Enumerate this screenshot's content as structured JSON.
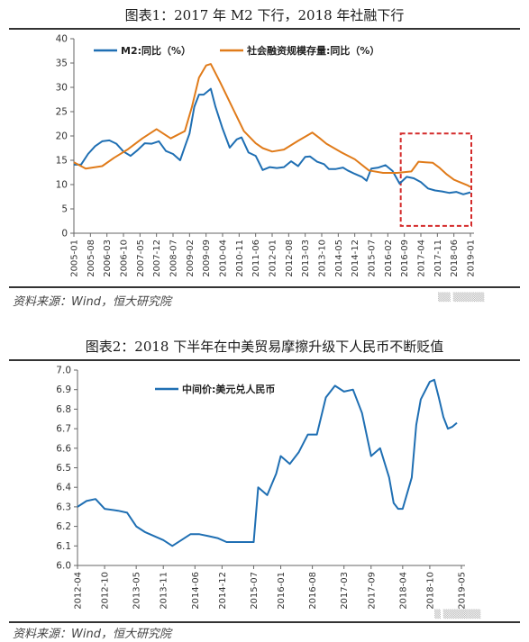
{
  "chart_data": [
    {
      "type": "line",
      "title": "图表1：2017 年 M2 下行，2018 年社融下行",
      "source": "资料来源：Wind，恒大研究院",
      "xlabel": "",
      "ylabel": "",
      "ylim": [
        0,
        40
      ],
      "yticks": [
        0,
        5,
        10,
        15,
        20,
        25,
        30,
        35,
        40
      ],
      "xticks": [
        "2005-01",
        "2005-08",
        "2006-03",
        "2006-10",
        "2007-05",
        "2007-12",
        "2008-07",
        "2009-02",
        "2009-09",
        "2010-04",
        "2010-11",
        "2011-06",
        "2012-01",
        "2012-08",
        "2013-03",
        "2013-10",
        "2014-05",
        "2014-12",
        "2015-07",
        "2016-02",
        "2016-09",
        "2017-04",
        "2017-11",
        "2018-06",
        "2019-01"
      ],
      "legend": "top",
      "highlight_box": {
        "x_from": "2016-09",
        "x_to": "2019-01",
        "y_from": 1.5,
        "y_to": 20.5,
        "color": "#d42a2a"
      },
      "series": [
        {
          "name": "M2:同比（%）",
          "color": "#1f6fb3",
          "points": [
            [
              "2005-01",
              14.1
            ],
            [
              "2005-04",
              14.1
            ],
            [
              "2005-07",
              16.3
            ],
            [
              "2005-10",
              17.9
            ],
            [
              "2006-01",
              18.9
            ],
            [
              "2006-04",
              19.1
            ],
            [
              "2006-07",
              18.4
            ],
            [
              "2006-10",
              16.8
            ],
            [
              "2007-01",
              15.9
            ],
            [
              "2007-04",
              17.1
            ],
            [
              "2007-07",
              18.5
            ],
            [
              "2007-10",
              18.4
            ],
            [
              "2008-01",
              18.9
            ],
            [
              "2008-04",
              16.9
            ],
            [
              "2008-07",
              16.3
            ],
            [
              "2008-10",
              15.0
            ],
            [
              "2008-12",
              17.8
            ],
            [
              "2009-02",
              20.5
            ],
            [
              "2009-04",
              26.0
            ],
            [
              "2009-06",
              28.5
            ],
            [
              "2009-08",
              28.5
            ],
            [
              "2009-11",
              29.7
            ],
            [
              "2010-01",
              26.0
            ],
            [
              "2010-04",
              21.5
            ],
            [
              "2010-07",
              17.6
            ],
            [
              "2010-10",
              19.3
            ],
            [
              "2010-12",
              19.7
            ],
            [
              "2011-03",
              16.6
            ],
            [
              "2011-06",
              15.9
            ],
            [
              "2011-09",
              13.0
            ],
            [
              "2011-12",
              13.6
            ],
            [
              "2012-03",
              13.4
            ],
            [
              "2012-06",
              13.6
            ],
            [
              "2012-09",
              14.8
            ],
            [
              "2012-12",
              13.8
            ],
            [
              "2013-03",
              15.7
            ],
            [
              "2013-05",
              15.8
            ],
            [
              "2013-08",
              14.7
            ],
            [
              "2013-11",
              14.2
            ],
            [
              "2014-01",
              13.2
            ],
            [
              "2014-04",
              13.2
            ],
            [
              "2014-07",
              13.5
            ],
            [
              "2014-09",
              12.9
            ],
            [
              "2014-12",
              12.2
            ],
            [
              "2015-03",
              11.6
            ],
            [
              "2015-05",
              10.8
            ],
            [
              "2015-07",
              13.3
            ],
            [
              "2015-10",
              13.5
            ],
            [
              "2016-01",
              14.0
            ],
            [
              "2016-04",
              12.8
            ],
            [
              "2016-07",
              10.2
            ],
            [
              "2016-10",
              11.6
            ],
            [
              "2017-01",
              11.3
            ],
            [
              "2017-04",
              10.5
            ],
            [
              "2017-07",
              9.2
            ],
            [
              "2017-10",
              8.8
            ],
            [
              "2018-01",
              8.6
            ],
            [
              "2018-04",
              8.3
            ],
            [
              "2018-07",
              8.5
            ],
            [
              "2018-10",
              8.0
            ],
            [
              "2019-01",
              8.4
            ]
          ]
        },
        {
          "name": "社会融资规模存量:同比（%）",
          "color": "#e07b1a",
          "points": [
            [
              "2005-01",
              14.6
            ],
            [
              "2005-06",
              13.3
            ],
            [
              "2006-01",
              13.8
            ],
            [
              "2006-06",
              15.5
            ],
            [
              "2006-12",
              17.3
            ],
            [
              "2007-06",
              19.5
            ],
            [
              "2007-12",
              21.4
            ],
            [
              "2008-06",
              19.5
            ],
            [
              "2008-12",
              21.0
            ],
            [
              "2009-03",
              26.0
            ],
            [
              "2009-06",
              32.0
            ],
            [
              "2009-09",
              34.5
            ],
            [
              "2009-11",
              34.8
            ],
            [
              "2010-03",
              31.0
            ],
            [
              "2010-09",
              25.0
            ],
            [
              "2011-01",
              21.0
            ],
            [
              "2011-06",
              18.5
            ],
            [
              "2011-09",
              17.5
            ],
            [
              "2012-01",
              16.8
            ],
            [
              "2012-06",
              17.2
            ],
            [
              "2012-12",
              19.0
            ],
            [
              "2013-06",
              20.7
            ],
            [
              "2013-09",
              19.6
            ],
            [
              "2013-12",
              18.4
            ],
            [
              "2014-06",
              16.7
            ],
            [
              "2014-12",
              15.2
            ],
            [
              "2015-06",
              12.9
            ],
            [
              "2015-12",
              12.4
            ],
            [
              "2016-06",
              12.4
            ],
            [
              "2016-12",
              12.7
            ],
            [
              "2017-03",
              14.7
            ],
            [
              "2017-06",
              14.6
            ],
            [
              "2017-09",
              14.5
            ],
            [
              "2017-12",
              13.4
            ],
            [
              "2018-03",
              12.1
            ],
            [
              "2018-06",
              11.0
            ],
            [
              "2018-09",
              10.4
            ],
            [
              "2018-12",
              9.8
            ],
            [
              "2019-01",
              9.5
            ]
          ]
        }
      ]
    },
    {
      "type": "line",
      "title": "图表2：2018 下半年在中美贸易摩擦升级下人民币不断贬值",
      "source": "资料来源：Wind，恒大研究院",
      "xlabel": "",
      "ylabel": "",
      "ylim": [
        6.0,
        7.0
      ],
      "yticks": [
        6.0,
        6.1,
        6.2,
        6.3,
        6.4,
        6.5,
        6.6,
        6.7,
        6.8,
        6.9,
        7.0
      ],
      "xticks": [
        "2012-04",
        "2012-10",
        "2013-05",
        "2013-11",
        "2014-06",
        "2014-12",
        "2015-07",
        "2016-01",
        "2016-08",
        "2017-03",
        "2017-09",
        "2018-04",
        "2018-10",
        "2019-05"
      ],
      "legend": "top",
      "series": [
        {
          "name": "中间价:美元兑人民币",
          "color": "#1f6fb3",
          "points": [
            [
              "2012-04",
              6.3
            ],
            [
              "2012-06",
              6.33
            ],
            [
              "2012-08",
              6.34
            ],
            [
              "2012-10",
              6.29
            ],
            [
              "2013-01",
              6.28
            ],
            [
              "2013-03",
              6.27
            ],
            [
              "2013-05",
              6.2
            ],
            [
              "2013-07",
              6.17
            ],
            [
              "2013-09",
              6.15
            ],
            [
              "2013-11",
              6.13
            ],
            [
              "2014-01",
              6.1
            ],
            [
              "2014-03",
              6.13
            ],
            [
              "2014-05",
              6.16
            ],
            [
              "2014-07",
              6.16
            ],
            [
              "2014-09",
              6.15
            ],
            [
              "2014-11",
              6.14
            ],
            [
              "2015-01",
              6.12
            ],
            [
              "2015-04",
              6.12
            ],
            [
              "2015-07",
              6.12
            ],
            [
              "2015-08",
              6.4
            ],
            [
              "2015-10",
              6.36
            ],
            [
              "2015-12",
              6.47
            ],
            [
              "2016-01",
              6.56
            ],
            [
              "2016-03",
              6.52
            ],
            [
              "2016-05",
              6.58
            ],
            [
              "2016-07",
              6.67
            ],
            [
              "2016-09",
              6.67
            ],
            [
              "2016-11",
              6.86
            ],
            [
              "2017-01",
              6.92
            ],
            [
              "2017-03",
              6.89
            ],
            [
              "2017-05",
              6.9
            ],
            [
              "2017-07",
              6.78
            ],
            [
              "2017-09",
              6.56
            ],
            [
              "2017-11",
              6.6
            ],
            [
              "2018-01",
              6.45
            ],
            [
              "2018-02",
              6.32
            ],
            [
              "2018-03",
              6.29
            ],
            [
              "2018-04",
              6.29
            ],
            [
              "2018-06",
              6.45
            ],
            [
              "2018-07",
              6.72
            ],
            [
              "2018-08",
              6.85
            ],
            [
              "2018-10",
              6.94
            ],
            [
              "2018-11",
              6.95
            ],
            [
              "2018-12",
              6.86
            ],
            [
              "2019-01",
              6.76
            ],
            [
              "2019-02",
              6.7
            ],
            [
              "2019-03",
              6.71
            ],
            [
              "2019-04",
              6.73
            ]
          ]
        }
      ]
    }
  ]
}
